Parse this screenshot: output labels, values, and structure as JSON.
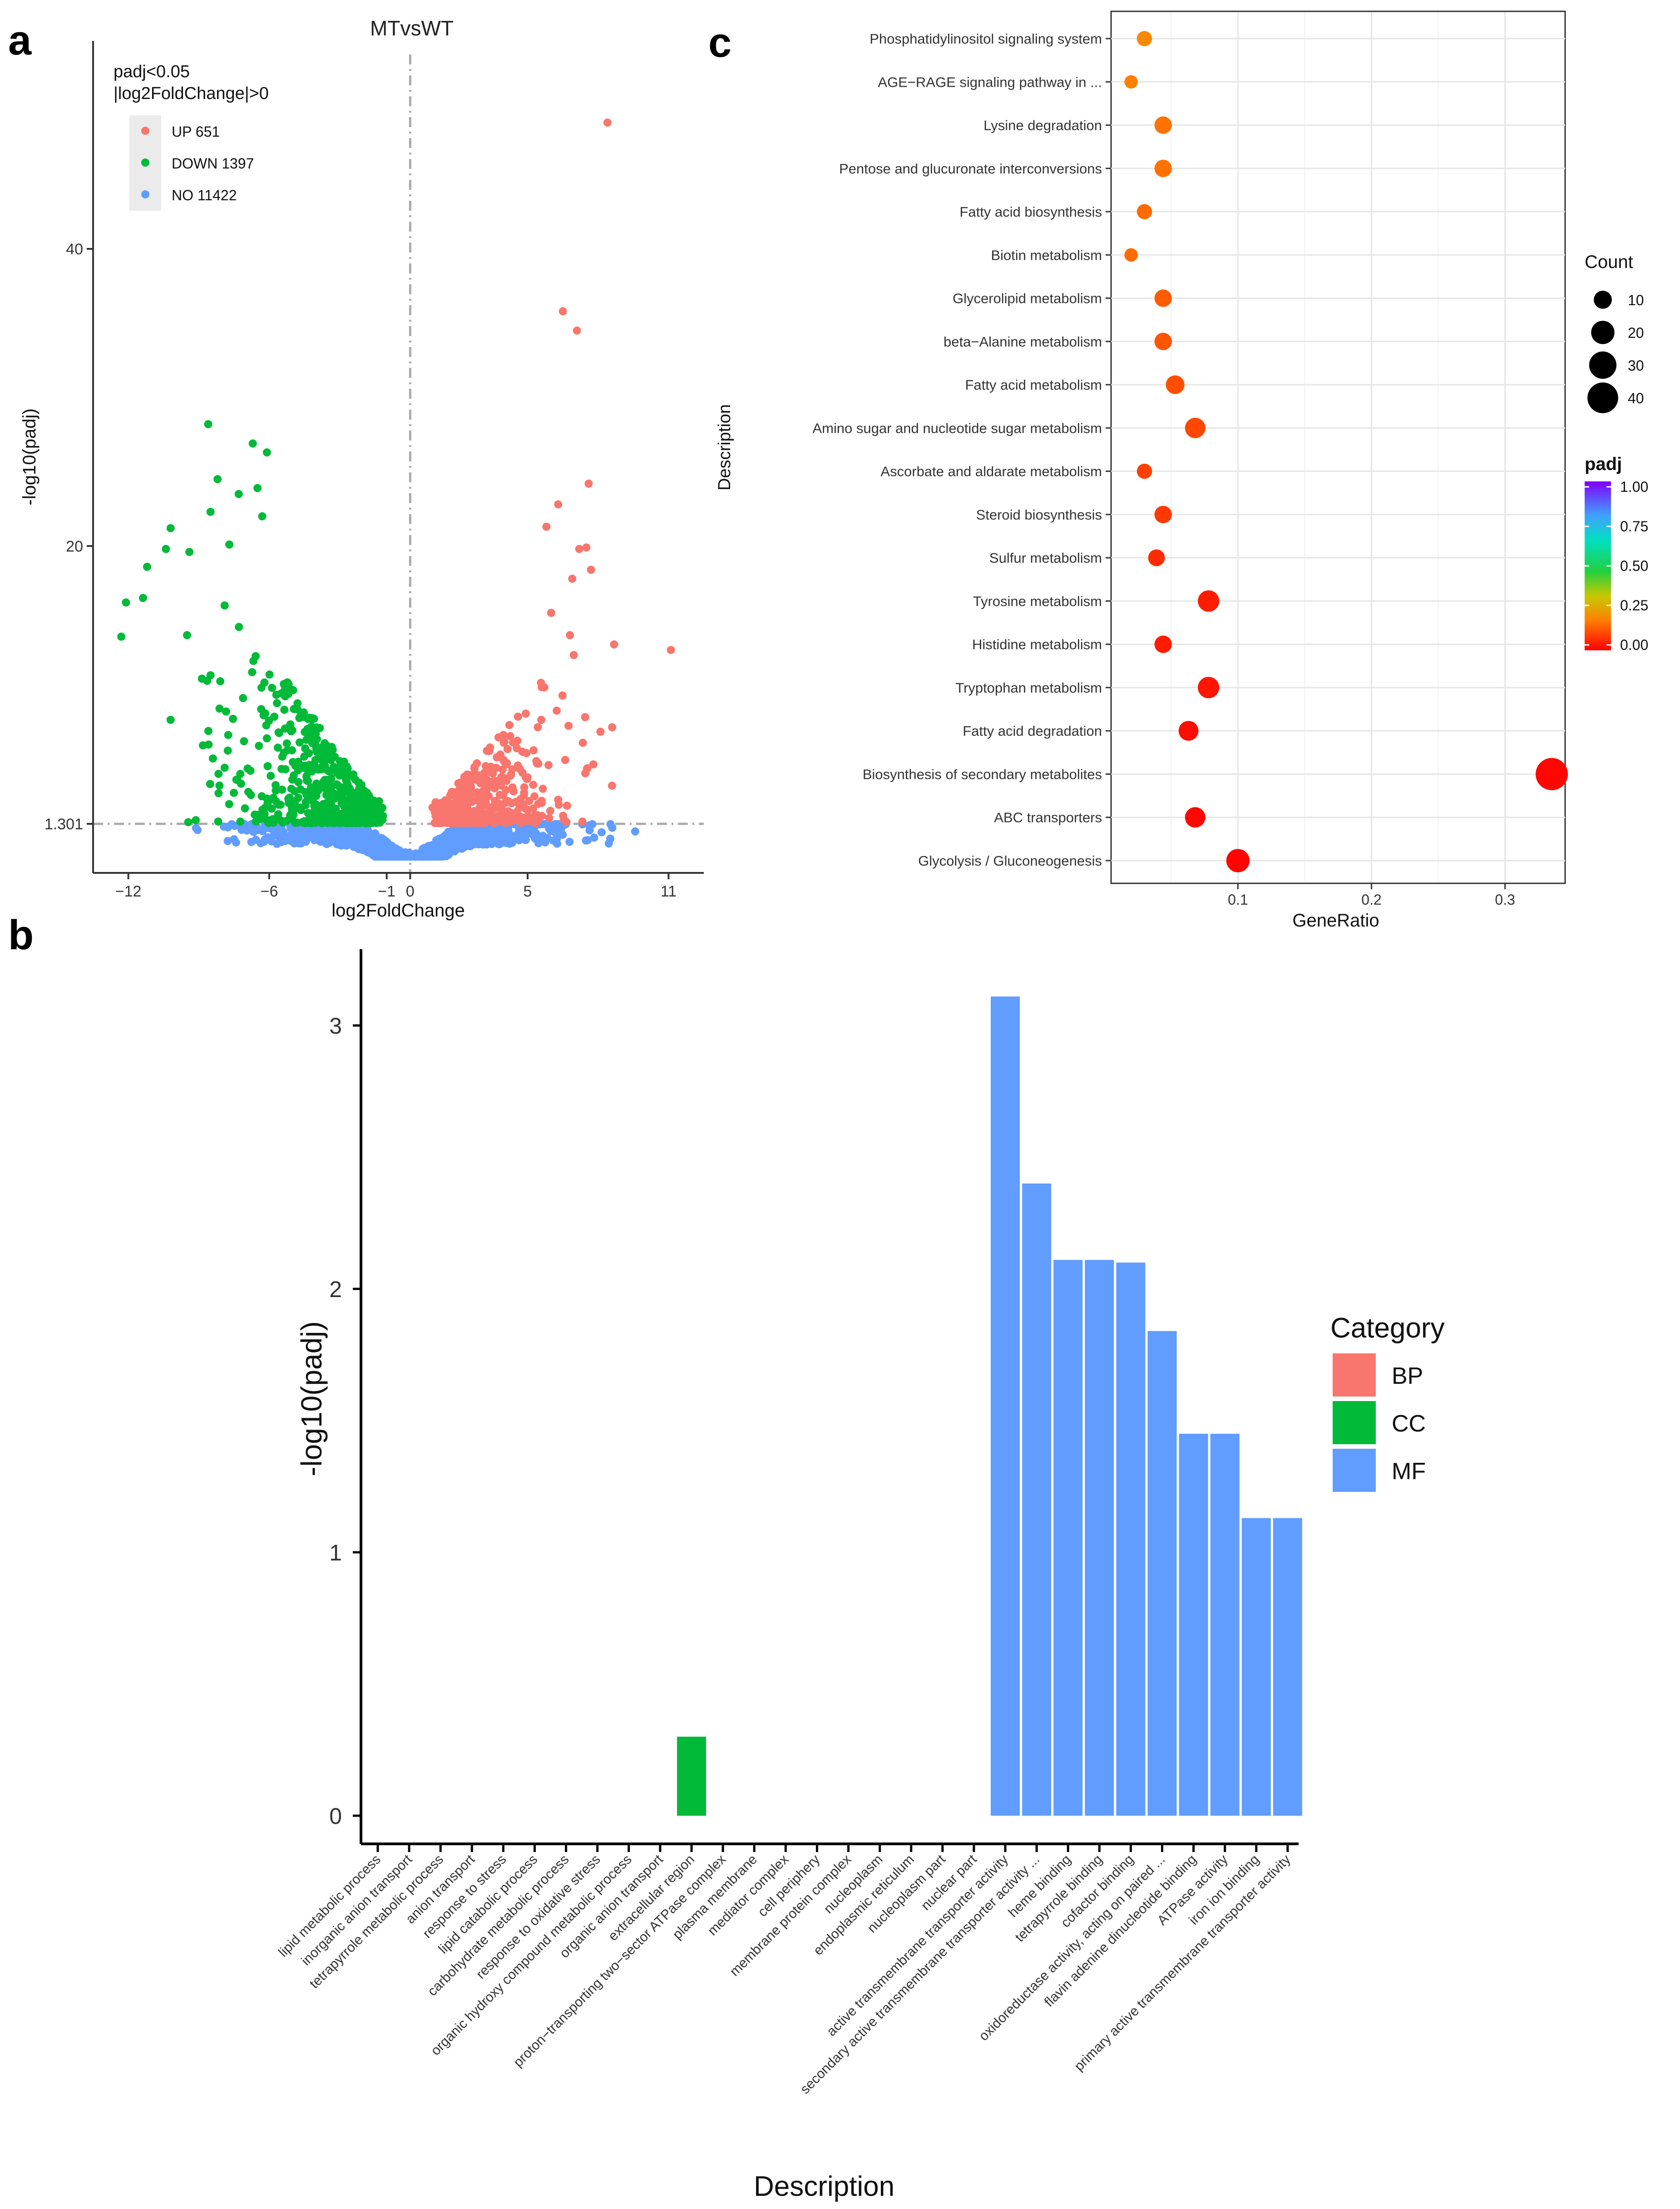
{
  "panels": {
    "a": "a",
    "b": "b",
    "c": "c"
  },
  "chart_data": [
    {
      "id": "volcano",
      "type": "scatter",
      "title": "MTvsWT",
      "xlabel": "log2FoldChange",
      "ylabel": "-log10(padj)",
      "xlim": [
        -13.5,
        12.5
      ],
      "ylim": [
        -2,
        54
      ],
      "x_ticks": [
        -12,
        -6,
        -1,
        0,
        5,
        11
      ],
      "y_ticks": [
        1.301,
        20,
        40
      ],
      "y_tick_labels": [
        "1.301",
        "20",
        "40"
      ],
      "threshold_padj_line": 1.301,
      "threshold_fc_line": 0,
      "legend": {
        "title_line1": "padj<0.05",
        "title_line2": "|log2FoldChange|>0",
        "entries": [
          {
            "label": "UP 651",
            "color": "#F8766D"
          },
          {
            "label": "DOWN 1397",
            "color": "#00BA38"
          },
          {
            "label": "NO 11422",
            "color": "#619CFF"
          }
        ]
      },
      "series": [
        {
          "name": "UP",
          "color": "#F8766D",
          "count": 651,
          "highlight_points": [
            [
              8.4,
              48.5
            ],
            [
              6.5,
              35.8
            ],
            [
              7.1,
              34.5
            ],
            [
              7.6,
              24.2
            ],
            [
              6.3,
              22.8
            ],
            [
              7.2,
              19.8
            ],
            [
              7.5,
              19.9
            ],
            [
              5.8,
              21.3
            ],
            [
              7.7,
              18.4
            ],
            [
              6.9,
              17.8
            ],
            [
              6.0,
              15.5
            ],
            [
              6.8,
              14.0
            ],
            [
              11.1,
              13.0
            ],
            [
              5.6,
              10.5
            ],
            [
              8.1,
              7.5
            ],
            [
              8.6,
              7.8
            ],
            [
              7.8,
              5.3
            ],
            [
              6.6,
              5.6
            ]
          ]
        },
        {
          "name": "DOWN",
          "color": "#00BA38",
          "count": 1397,
          "highlight_points": [
            [
              -8.6,
              28.2
            ],
            [
              -6.7,
              26.9
            ],
            [
              -6.1,
              26.3
            ],
            [
              -8.2,
              24.5
            ],
            [
              -6.5,
              23.9
            ],
            [
              -7.3,
              23.5
            ],
            [
              -8.5,
              22.3
            ],
            [
              -6.3,
              22.0
            ],
            [
              -10.2,
              21.2
            ],
            [
              -7.7,
              20.1
            ],
            [
              -10.4,
              19.8
            ],
            [
              -9.4,
              19.6
            ],
            [
              -11.2,
              18.6
            ],
            [
              -12.1,
              16.2
            ],
            [
              -7.9,
              16.0
            ],
            [
              -12.3,
              13.9
            ],
            [
              -9.5,
              14.0
            ],
            [
              -8.5,
              11.3
            ],
            [
              -10.2,
              8.3
            ],
            [
              -8.4,
              5.7
            ],
            [
              -7.2,
              4.0
            ],
            [
              -6.1,
              3.0
            ]
          ]
        },
        {
          "name": "NO",
          "color": "#619CFF",
          "count": 11422
        }
      ]
    },
    {
      "id": "go-bar",
      "type": "bar",
      "xlabel": "Description",
      "ylabel": "-log10(padj)",
      "ylim": [
        -0.2,
        3.3
      ],
      "y_ticks": [
        0,
        1,
        2,
        3
      ],
      "legend": {
        "title": "Category",
        "entries": [
          {
            "label": "BP",
            "color": "#F8766D"
          },
          {
            "label": "CC",
            "color": "#00BA38"
          },
          {
            "label": "MF",
            "color": "#619CFF"
          }
        ]
      },
      "categories": [
        "lipid metabolic process",
        "inorganic anion transport",
        "tetrapyrrole metabolic process",
        "anion transport",
        "response to stress",
        "lipid catabolic process",
        "carbohydrate metabolic process",
        "response to oxidative stress",
        "organic hydroxy compound metabolic process",
        "organic anion transport",
        "extracellular region",
        "proton-transporting two-sector ATPase complex",
        "plasma membrane",
        "mediator complex",
        "cell periphery",
        "membrane protein complex",
        "nucleoplasm",
        "endoplasmic reticulum",
        "nucleoplasm part",
        "nuclear part",
        "active transmembrane transporter activity",
        "secondary active transmembrane transporter activity ...",
        "heme binding",
        "tetrapyrrole binding",
        "cofactor binding",
        "oxidoreductase activity, acting on paired ...",
        "flavin adenine dinucleotide binding",
        "ATPase activity",
        "iron ion binding",
        "primary active transmembrane transporter activity"
      ],
      "category_group": [
        "BP",
        "BP",
        "BP",
        "BP",
        "BP",
        "BP",
        "BP",
        "BP",
        "BP",
        "BP",
        "CC",
        "CC",
        "CC",
        "CC",
        "CC",
        "CC",
        "CC",
        "CC",
        "CC",
        "CC",
        "MF",
        "MF",
        "MF",
        "MF",
        "MF",
        "MF",
        "MF",
        "MF",
        "MF",
        "MF"
      ],
      "values": [
        0,
        0,
        0,
        0,
        0,
        0,
        0,
        0,
        0,
        0,
        0.3,
        0,
        0,
        0,
        0,
        0,
        0,
        0,
        0,
        0,
        3.11,
        2.4,
        2.11,
        2.11,
        2.1,
        1.84,
        1.45,
        1.45,
        1.13,
        1.13
      ]
    },
    {
      "id": "kegg-dot",
      "type": "scatter",
      "xlabel": "GeneRatio",
      "ylabel": "Description",
      "xlim": [
        0.005,
        0.345
      ],
      "x_ticks": [
        0.1,
        0.2,
        0.3
      ],
      "size_legend": {
        "title": "Count",
        "values": [
          10,
          20,
          30,
          40
        ]
      },
      "color_legend": {
        "title": "padj",
        "ticks": [
          "1.00",
          "0.75",
          "0.50",
          "0.25",
          "0.00"
        ]
      },
      "pathways": [
        {
          "label": "Phosphatidylinositol signaling system",
          "ratio": 0.03,
          "count": 6,
          "padj": 0.2
        },
        {
          "label": "AGE−RAGE signaling pathway in ...",
          "ratio": 0.02,
          "count": 4,
          "padj": 0.18
        },
        {
          "label": "Lysine degradation",
          "ratio": 0.044,
          "count": 9,
          "padj": 0.16
        },
        {
          "label": "Pentose and glucuronate interconversions",
          "ratio": 0.044,
          "count": 9,
          "padj": 0.16
        },
        {
          "label": "Fatty acid biosynthesis",
          "ratio": 0.03,
          "count": 6,
          "padj": 0.15
        },
        {
          "label": "Biotin metabolism",
          "ratio": 0.02,
          "count": 4,
          "padj": 0.15
        },
        {
          "label": "Glycerolipid metabolism",
          "ratio": 0.044,
          "count": 9,
          "padj": 0.13
        },
        {
          "label": "beta−Alanine metabolism",
          "ratio": 0.044,
          "count": 9,
          "padj": 0.12
        },
        {
          "label": "Fatty acid metabolism",
          "ratio": 0.053,
          "count": 11,
          "padj": 0.11
        },
        {
          "label": "Amino sugar and nucleotide sugar metabolism",
          "ratio": 0.068,
          "count": 14,
          "padj": 0.1
        },
        {
          "label": "Ascorbate and aldarate metabolism",
          "ratio": 0.03,
          "count": 6,
          "padj": 0.09
        },
        {
          "label": "Steroid biosynthesis",
          "ratio": 0.044,
          "count": 9,
          "padj": 0.08
        },
        {
          "label": "Sulfur metabolism",
          "ratio": 0.039,
          "count": 8,
          "padj": 0.06
        },
        {
          "label": "Tyrosine metabolism",
          "ratio": 0.078,
          "count": 16,
          "padj": 0.04
        },
        {
          "label": "Histidine metabolism",
          "ratio": 0.044,
          "count": 9,
          "padj": 0.04
        },
        {
          "label": "Tryptophan metabolism",
          "ratio": 0.078,
          "count": 16,
          "padj": 0.03
        },
        {
          "label": "Fatty acid degradation",
          "ratio": 0.063,
          "count": 13,
          "padj": 0.02
        },
        {
          "label": "Biosynthesis of secondary metabolites",
          "ratio": 0.335,
          "count": 45,
          "padj": 0.01
        },
        {
          "label": "ABC transporters",
          "ratio": 0.068,
          "count": 14,
          "padj": 0.01
        },
        {
          "label": "Glycolysis / Gluconeogenesis",
          "ratio": 0.1,
          "count": 20,
          "padj": 0.005
        }
      ]
    }
  ]
}
